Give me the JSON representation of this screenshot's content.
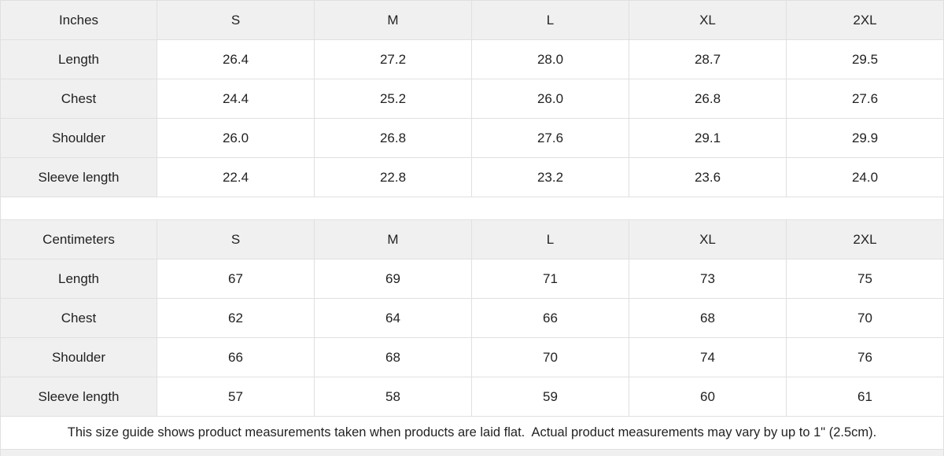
{
  "tables": [
    {
      "unit_label": "Inches",
      "sizes": [
        "S",
        "M",
        "L",
        "XL",
        "2XL"
      ],
      "rows": [
        {
          "label": "Length",
          "values": [
            "26.4",
            "27.2",
            "28.0",
            "28.7",
            "29.5"
          ]
        },
        {
          "label": "Chest",
          "values": [
            "24.4",
            "25.2",
            "26.0",
            "26.8",
            "27.6"
          ]
        },
        {
          "label": "Shoulder",
          "values": [
            "26.0",
            "26.8",
            "27.6",
            "29.1",
            "29.9"
          ]
        },
        {
          "label": "Sleeve length",
          "values": [
            "22.4",
            "22.8",
            "23.2",
            "23.6",
            "24.0"
          ]
        }
      ]
    },
    {
      "unit_label": "Centimeters",
      "sizes": [
        "S",
        "M",
        "L",
        "XL",
        "2XL"
      ],
      "rows": [
        {
          "label": "Length",
          "values": [
            "67",
            "69",
            "71",
            "73",
            "75"
          ]
        },
        {
          "label": "Chest",
          "values": [
            "62",
            "64",
            "66",
            "68",
            "70"
          ]
        },
        {
          "label": "Shoulder",
          "values": [
            "66",
            "68",
            "70",
            "74",
            "76"
          ]
        },
        {
          "label": "Sleeve length",
          "values": [
            "57",
            "58",
            "59",
            "60",
            "61"
          ]
        }
      ]
    }
  ],
  "footer": {
    "note": "This size guide shows product measurements taken when products are laid flat.  Actual product measurements may vary by up to 1\" (2.5cm)."
  },
  "colors": {
    "header_bg": "#f0f0f0",
    "border": "#e0e0e0",
    "text": "#222222"
  }
}
